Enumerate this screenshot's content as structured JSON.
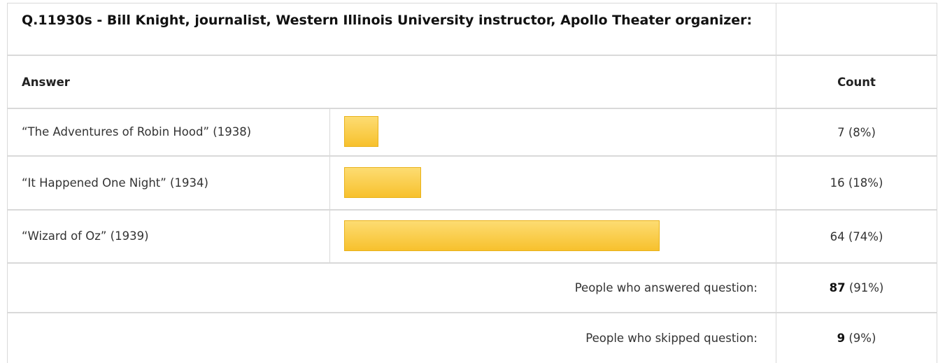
{
  "question": {
    "title": "Q.11930s - Bill Knight, journalist, Western Illinois University instructor, Apollo Theater organizer:"
  },
  "columns": {
    "answer": "Answer",
    "count": "Count"
  },
  "chart_data": {
    "type": "bar",
    "orientation": "horizontal",
    "categories": [
      "“The Adventures of Robin Hood” (1938)",
      "“It Happened One Night” (1934)",
      "“Wizard of Oz” (1939)"
    ],
    "values": [
      7,
      16,
      64
    ],
    "percent": [
      8,
      18,
      74
    ],
    "count_labels": [
      "7 (8%)",
      "16 (18%)",
      "64 (74%)"
    ],
    "title": "Q.11930s - Bill Knight, journalist, Western Illinois University instructor, Apollo Theater organizer:",
    "bar_color": "#f7c12d"
  },
  "summary": {
    "answered_label": "People who answered question:",
    "answered_count": "87",
    "answered_pct": " (91%)",
    "skipped_label": "People who skipped question:",
    "skipped_count": "9",
    "skipped_pct": " (9%)"
  }
}
